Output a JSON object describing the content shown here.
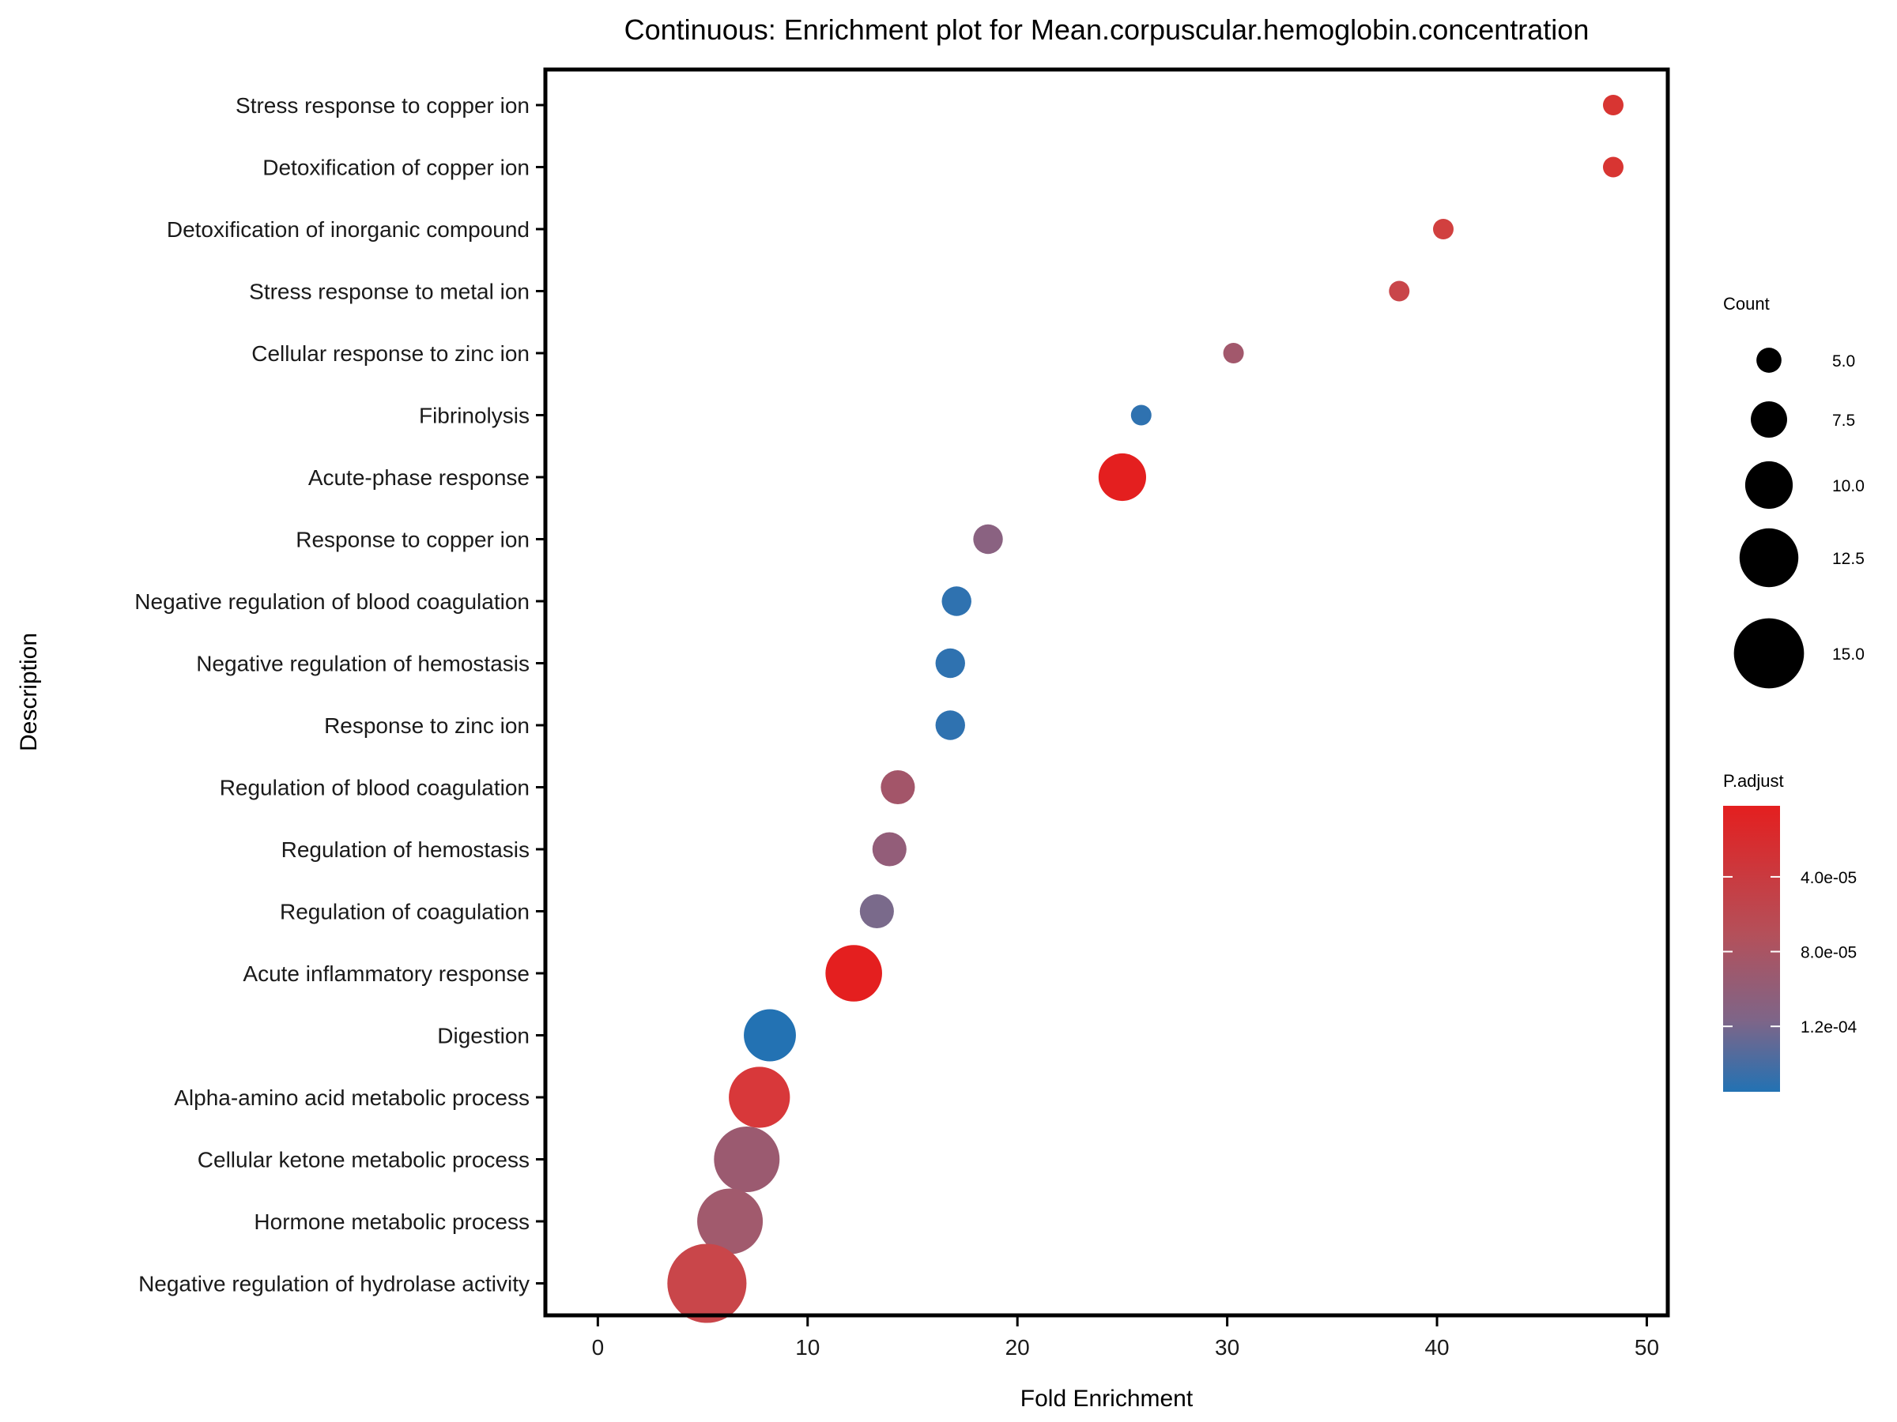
{
  "chart_data": {
    "type": "scatter",
    "title": "Continuous: Enrichment plot for Mean.corpuscular.hemoglobin.concentration",
    "xlabel": "Fold Enrichment",
    "ylabel": "Description",
    "xlim": [
      -2.5,
      51
    ],
    "xticks": [
      0,
      10,
      20,
      30,
      40,
      50
    ],
    "xtick_labels": [
      "0",
      "10",
      "20",
      "30",
      "40",
      "50"
    ],
    "grid": false,
    "points": [
      {
        "description": "Stress response to copper ion",
        "fold_enrichment": 48.4,
        "count": 4,
        "p_adjust": 2e-05,
        "color": "#D83532"
      },
      {
        "description": "Detoxification of copper ion",
        "fold_enrichment": 48.4,
        "count": 4,
        "p_adjust": 2e-05,
        "color": "#D83532"
      },
      {
        "description": "Detoxification of inorganic compound",
        "fold_enrichment": 40.3,
        "count": 4,
        "p_adjust": 3.5e-05,
        "color": "#D1403F"
      },
      {
        "description": "Stress response to metal ion",
        "fold_enrichment": 38.2,
        "count": 4,
        "p_adjust": 4.5e-05,
        "color": "#C9464A"
      },
      {
        "description": "Cellular response to zinc ion",
        "fold_enrichment": 30.3,
        "count": 4,
        "p_adjust": 9e-05,
        "color": "#A2586C"
      },
      {
        "description": "Fibrinolysis",
        "fold_enrichment": 25.9,
        "count": 4,
        "p_adjust": 0.00015,
        "color": "#2F72B0"
      },
      {
        "description": "Acute-phase response",
        "fold_enrichment": 25.0,
        "count": 10,
        "p_adjust": 2e-06,
        "color": "#E41F1F"
      },
      {
        "description": "Response to copper ion",
        "fold_enrichment": 18.6,
        "count": 6,
        "p_adjust": 0.00011,
        "color": "#8A6281"
      },
      {
        "description": "Negative regulation of blood coagulation",
        "fold_enrichment": 17.1,
        "count": 6,
        "p_adjust": 0.000148,
        "color": "#2F72B0"
      },
      {
        "description": "Negative regulation of hemostasis",
        "fold_enrichment": 16.8,
        "count": 6,
        "p_adjust": 0.000148,
        "color": "#2F72B0"
      },
      {
        "description": "Response to zinc ion",
        "fold_enrichment": 16.8,
        "count": 6,
        "p_adjust": 0.000148,
        "color": "#2F72B0"
      },
      {
        "description": "Regulation of blood coagulation",
        "fold_enrichment": 14.3,
        "count": 7,
        "p_adjust": 8.5e-05,
        "color": "#A35569"
      },
      {
        "description": "Regulation of hemostasis",
        "fold_enrichment": 13.9,
        "count": 7,
        "p_adjust": 0.0001,
        "color": "#935D79"
      },
      {
        "description": "Regulation of coagulation",
        "fold_enrichment": 13.3,
        "count": 7,
        "p_adjust": 0.00012,
        "color": "#7A6A8B"
      },
      {
        "description": "Acute inflammatory response",
        "fold_enrichment": 12.2,
        "count": 12,
        "p_adjust": 2e-06,
        "color": "#E41F1F"
      },
      {
        "description": "Digestion",
        "fold_enrichment": 8.2,
        "count": 11,
        "p_adjust": 0.00015,
        "color": "#2372B3"
      },
      {
        "description": "Alpha-amino acid metabolic process",
        "fold_enrichment": 7.7,
        "count": 13,
        "p_adjust": 2.5e-05,
        "color": "#D8383A"
      },
      {
        "description": "Cellular ketone metabolic process",
        "fold_enrichment": 7.1,
        "count": 14,
        "p_adjust": 9.5e-05,
        "color": "#9B5A70"
      },
      {
        "description": "Hormone metabolic process",
        "fold_enrichment": 6.3,
        "count": 14,
        "p_adjust": 9e-05,
        "color": "#A15A6D"
      },
      {
        "description": "Negative regulation of hydrolase activity",
        "fold_enrichment": 5.2,
        "count": 17,
        "p_adjust": 4.5e-05,
        "color": "#C9464A"
      }
    ],
    "legend": {
      "placement": "right",
      "size": {
        "title": "Count",
        "values": [
          5.0,
          7.5,
          10.0,
          12.5,
          15.0
        ],
        "labels": [
          "5.0",
          "7.5",
          "10.0",
          "12.5",
          "15.0"
        ],
        "color": "#000000"
      },
      "color": {
        "title": "P.adjust",
        "tick_values": [
          4e-05,
          8e-05,
          0.00012
        ],
        "tick_labels": [
          "4.0e-05",
          "8.0e-05",
          "1.2e-04"
        ],
        "range": [
          2e-06,
          0.000155
        ],
        "low_color": "#E41F1F",
        "high_color": "#2372B3"
      }
    }
  }
}
